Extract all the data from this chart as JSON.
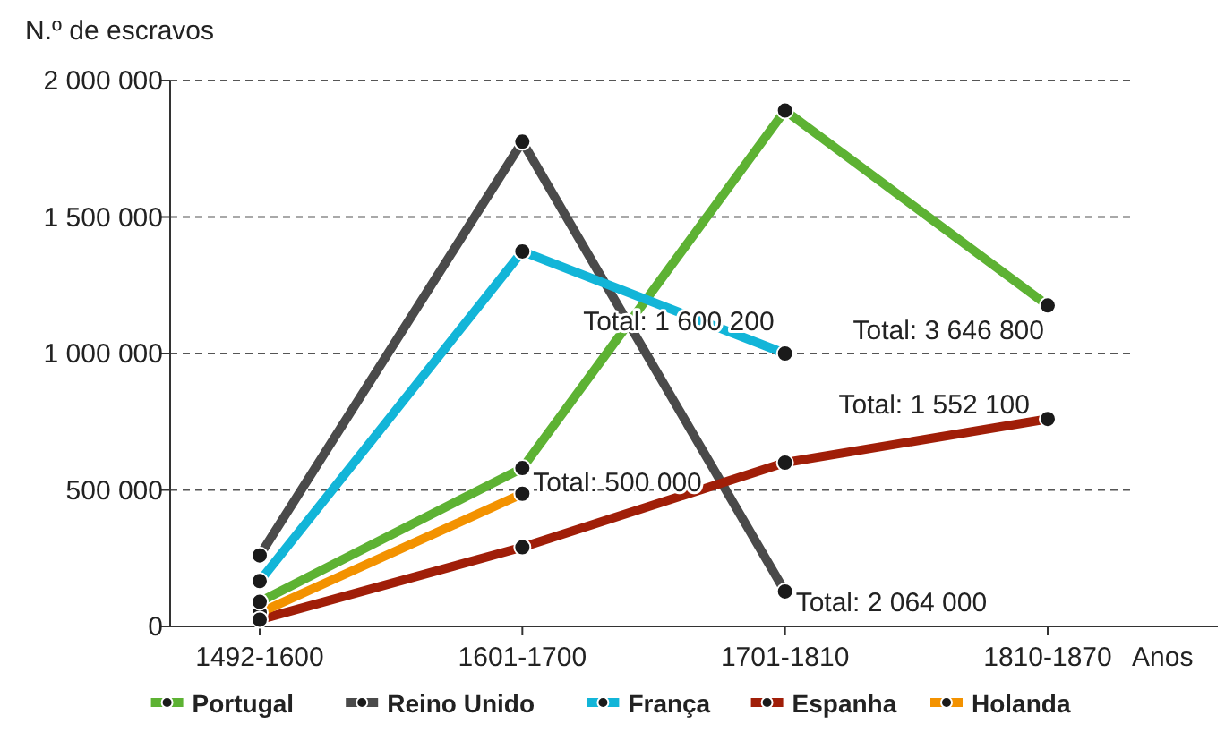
{
  "chart_data": {
    "type": "line",
    "ylabel": "N.º de escravos",
    "xlabel": "Anos",
    "categories": [
      "1492-1600",
      "1601-1700",
      "1701-1810",
      "1810-1870"
    ],
    "series": [
      {
        "name": "Portugal",
        "color": "#5db233",
        "values": [
          90000,
          580000,
          1890000,
          1176000
        ]
      },
      {
        "name": "Reino Unido",
        "color": "#4a4a4a",
        "values": [
          260000,
          1776000,
          128000,
          null
        ]
      },
      {
        "name": "França",
        "color": "#12b5d8",
        "values": [
          166000,
          1374000,
          1000000,
          null
        ]
      },
      {
        "name": "Espanha",
        "color": "#a01e08",
        "values": [
          25000,
          290000,
          600000,
          760000
        ]
      },
      {
        "name": "Holanda",
        "color": "#f39200",
        "values": [
          50000,
          486000,
          null,
          null
        ]
      }
    ],
    "ylim": [
      0,
      2000000
    ],
    "yticks": [
      {
        "value": 0,
        "label": "0"
      },
      {
        "value": 500000,
        "label": "500 000"
      },
      {
        "value": 1000000,
        "label": "1 000 000"
      },
      {
        "value": 1500000,
        "label": "1 500 000"
      },
      {
        "value": 2000000,
        "label": "2 000 000"
      }
    ],
    "grid": "y",
    "legend": "bottom",
    "marker": "circle",
    "line_style": "solid",
    "annotations": [
      {
        "text": "Total: 3 646 800",
        "x": "1810-1870",
        "y": 1176000
      },
      {
        "text": "Total: 2 064 000",
        "x": "1701-1810",
        "y": 128000
      },
      {
        "text": "Total: 1 600 200",
        "x": "1701-1810",
        "y": 1000000
      },
      {
        "text": "Total: 1 552 100",
        "x": "1810-1870",
        "y": 760000
      },
      {
        "text": "Total: 500 000",
        "x": "1601-1700",
        "y": 580000
      }
    ]
  }
}
